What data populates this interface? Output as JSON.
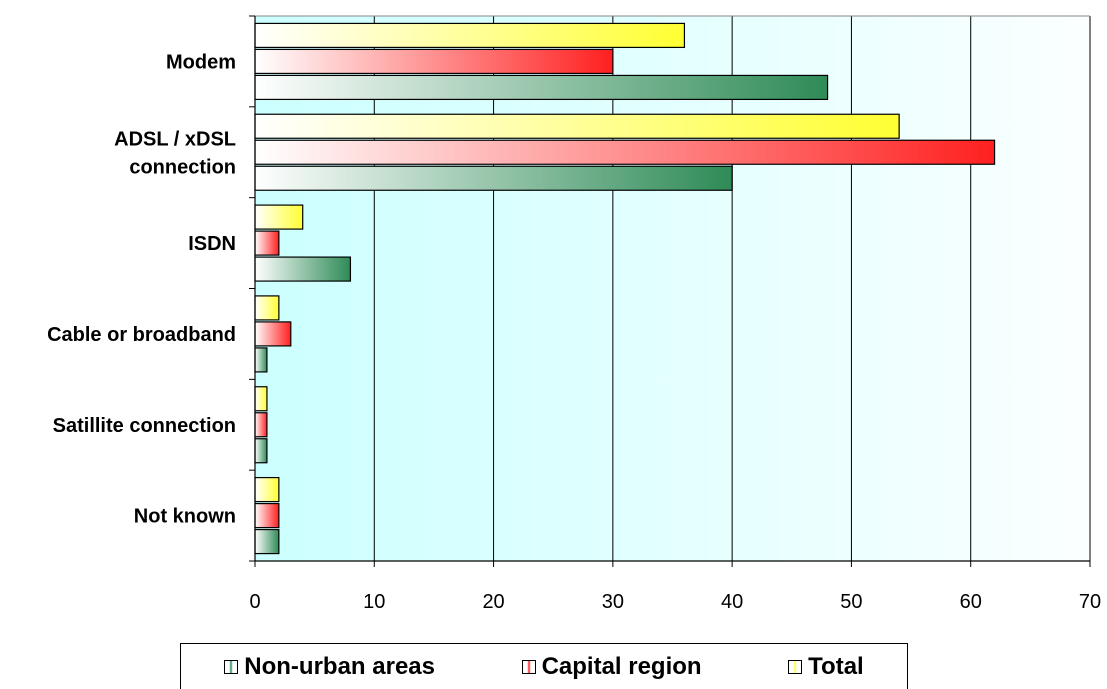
{
  "chart_data": {
    "type": "bar",
    "orientation": "horizontal",
    "categories": [
      "Modem",
      "ADSL / xDSL connection",
      "ISDN",
      "Cable or broadband",
      "Satillite connection",
      "Not known"
    ],
    "category_lines": [
      [
        "Modem"
      ],
      [
        "ADSL / xDSL",
        "connection"
      ],
      [
        "ISDN"
      ],
      [
        "Cable or broadband"
      ],
      [
        "Satillite connection"
      ],
      [
        "Not known"
      ]
    ],
    "series": [
      {
        "name": "Total",
        "values": [
          36,
          54,
          4,
          2,
          1,
          2
        ],
        "color": "#ffff33"
      },
      {
        "name": "Capital region",
        "values": [
          30,
          62,
          2,
          3,
          1,
          2
        ],
        "color": "#ff2020"
      },
      {
        "name": "Non-urban areas",
        "values": [
          48,
          40,
          8,
          1,
          1,
          2
        ],
        "color": "#2e8b57"
      }
    ],
    "xlim": [
      0,
      70
    ],
    "xticks": [
      "0",
      "10",
      "20",
      "30",
      "40",
      "50",
      "60",
      "70"
    ],
    "grid": true,
    "legend_position": "bottom",
    "legend_order": [
      "Non-urban areas",
      "Capital region",
      "Total"
    ],
    "plot_background": "#ccffff"
  }
}
